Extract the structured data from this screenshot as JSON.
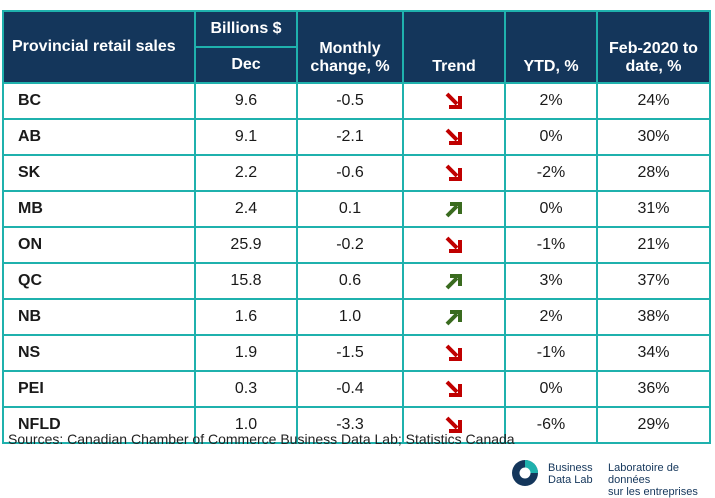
{
  "table": {
    "header": {
      "provincial_retail_sales": "Provincial retail sales",
      "billions": "Billions $",
      "dec": "Dec",
      "monthly_change": "Monthly change, %",
      "trend": "Trend",
      "ytd": "YTD, %",
      "feb2020": "Feb-2020 to date, %"
    },
    "rows": [
      {
        "province": "BC",
        "dec": "9.6",
        "monthly": "-0.5",
        "trend": "down",
        "ytd": "2%",
        "feb": "24%"
      },
      {
        "province": "AB",
        "dec": "9.1",
        "monthly": "-2.1",
        "trend": "down",
        "ytd": "0%",
        "feb": "30%"
      },
      {
        "province": "SK",
        "dec": "2.2",
        "monthly": "-0.6",
        "trend": "down",
        "ytd": "-2%",
        "feb": "28%"
      },
      {
        "province": "MB",
        "dec": "2.4",
        "monthly": "0.1",
        "trend": "up",
        "ytd": "0%",
        "feb": "31%"
      },
      {
        "province": "ON",
        "dec": "25.9",
        "monthly": "-0.2",
        "trend": "down",
        "ytd": "-1%",
        "feb": "21%"
      },
      {
        "province": "QC",
        "dec": "15.8",
        "monthly": "0.6",
        "trend": "up",
        "ytd": "3%",
        "feb": "37%"
      },
      {
        "province": "NB",
        "dec": "1.6",
        "monthly": "1.0",
        "trend": "up",
        "ytd": "2%",
        "feb": "38%"
      },
      {
        "province": "NS",
        "dec": "1.9",
        "monthly": "-1.5",
        "trend": "down",
        "ytd": "-1%",
        "feb": "34%"
      },
      {
        "province": "PEI",
        "dec": "0.3",
        "monthly": "-0.4",
        "trend": "down",
        "ytd": "0%",
        "feb": "36%"
      },
      {
        "province": "NFLD",
        "dec": "1.0",
        "monthly": "-3.3",
        "trend": "down",
        "ytd": "-6%",
        "feb": "29%"
      }
    ]
  },
  "footer": {
    "sources": "Sources: Canadian Chamber of Commerce Business Data Lab; Statistics Canada"
  },
  "logo": {
    "en_line1": "Business",
    "en_line2": "Data Lab",
    "fr_line1": "Laboratoire de données",
    "fr_line2": "sur les entreprises"
  },
  "colors": {
    "header_bg": "#14365b",
    "border": "#1fb1ad",
    "arrow_down": "#c00000",
    "arrow_up": "#3a6b1f"
  },
  "icons": {
    "down": "arrow-down-right-icon",
    "up": "arrow-up-right-icon"
  }
}
